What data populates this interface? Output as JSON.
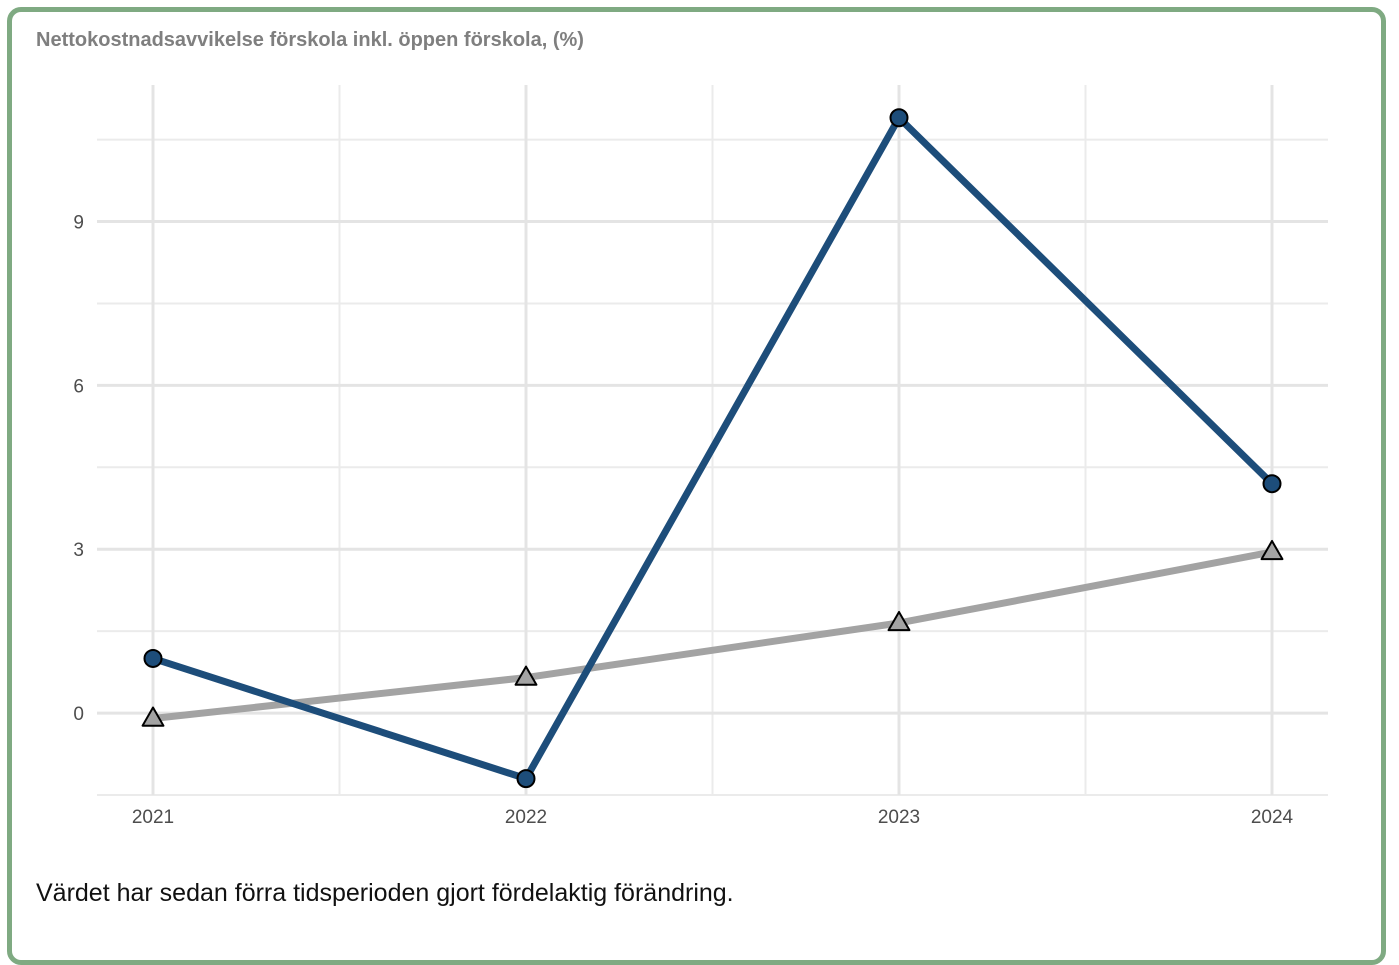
{
  "card": {
    "border_color": "#7faa82"
  },
  "chart_data": {
    "type": "line",
    "title": "Nettokostnadsavvikelse förskola inkl. öppen förskola, (%)",
    "xlabel": "",
    "ylabel": "",
    "x": [
      "2021",
      "2022",
      "2023",
      "2024"
    ],
    "ylim": [
      -1.5,
      11.5
    ],
    "y_ticks": [
      0,
      3,
      6,
      9
    ],
    "grid": true,
    "series": [
      {
        "values": [
          1.0,
          -1.2,
          10.9,
          4.2
        ],
        "color": "#1d4d7a",
        "marker": "circle"
      },
      {
        "values": [
          -0.1,
          0.65,
          1.65,
          2.95
        ],
        "color": "#a3a3a3",
        "marker": "triangle"
      }
    ]
  },
  "footnote": "Värdet har sedan förra tidsperioden gjort fördelaktig förändring."
}
